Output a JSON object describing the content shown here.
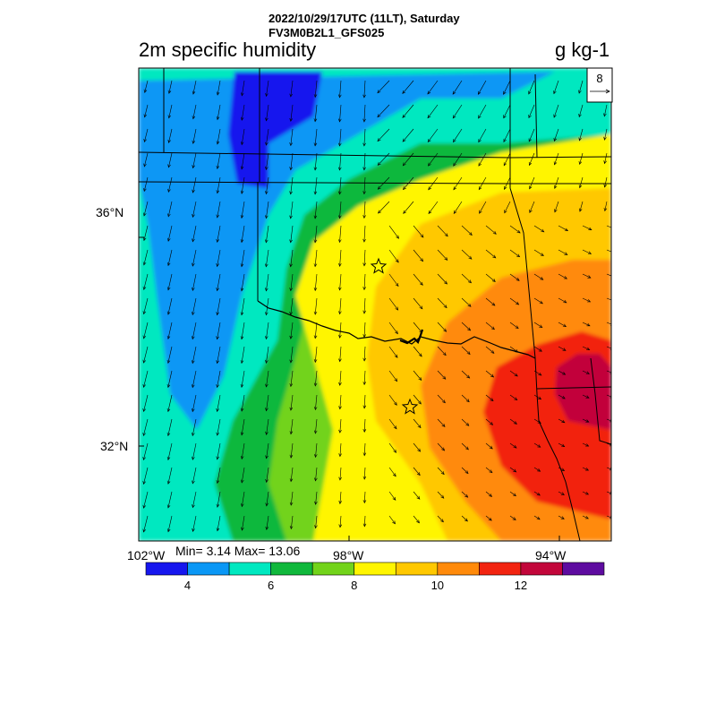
{
  "header": {
    "datetime": "2022/10/29/17UTC (11LT), Saturday",
    "model": "FV3M0B2L1_GFS025"
  },
  "title": "2m specific humidity",
  "units": "g kg-1",
  "vector_reference": {
    "value": "8"
  },
  "stats": {
    "text": "Min= 3.14 Max= 13.06",
    "min": 3.14,
    "max": 13.06
  },
  "axes": {
    "lat_labels": [
      "36°N",
      "32°N"
    ],
    "lon_labels": [
      "102°W",
      "98°W",
      "94°W"
    ]
  },
  "colorbar": {
    "colors": [
      "#1616ee",
      "#0a97f5",
      "#00e8c0",
      "#10b83c",
      "#72d31a",
      "#fff500",
      "#ffc800",
      "#ff8a0a",
      "#f22410",
      "#c2063a",
      "#5e0ca0"
    ],
    "tick_labels": [
      "4",
      "6",
      "8",
      "10",
      "12"
    ]
  },
  "map": {
    "markers": [
      "star",
      "star"
    ]
  }
}
